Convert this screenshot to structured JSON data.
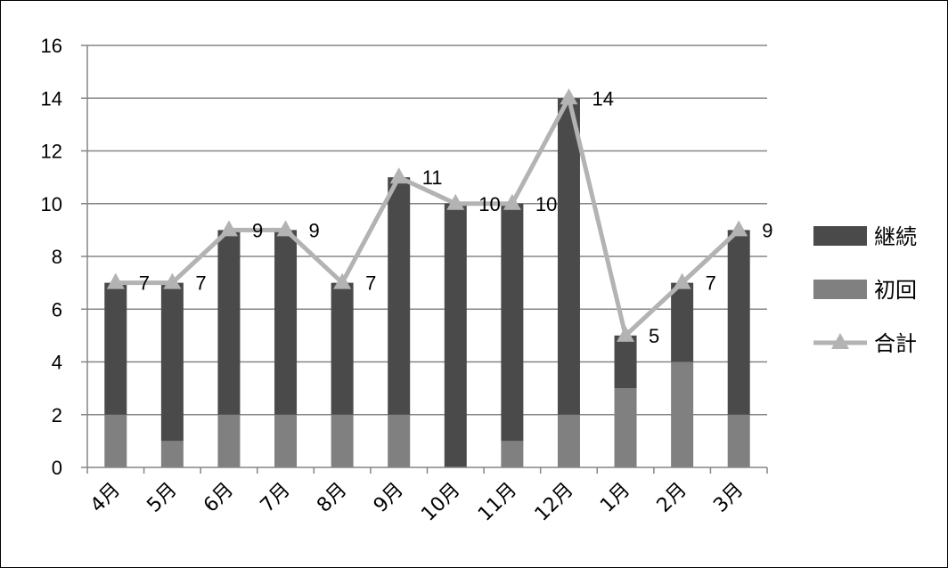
{
  "chart_data": {
    "type": "bar",
    "stacked": true,
    "title": "",
    "xlabel": "",
    "ylabel": "",
    "ylim": [
      0,
      16
    ],
    "yticks": [
      0,
      2,
      4,
      6,
      8,
      10,
      12,
      14,
      16
    ],
    "grid": true,
    "legend_position": "right",
    "categories": [
      "4月",
      "5月",
      "6月",
      "7月",
      "8月",
      "9月",
      "10月",
      "11月",
      "12月",
      "1月",
      "2月",
      "3月"
    ],
    "series": [
      {
        "name": "初回",
        "kind": "bar",
        "color": "#808080",
        "values": [
          2,
          1,
          2,
          2,
          2,
          2,
          0,
          1,
          2,
          3,
          4,
          2
        ]
      },
      {
        "name": "継続",
        "kind": "bar",
        "color": "#4a4a4a",
        "values": [
          5,
          6,
          7,
          7,
          5,
          9,
          10,
          9,
          12,
          2,
          3,
          7
        ]
      },
      {
        "name": "合計",
        "kind": "line",
        "color": "#b3b3b3",
        "marker": "triangle",
        "values": [
          7,
          7,
          9,
          9,
          7,
          11,
          10,
          10,
          14,
          5,
          7,
          9
        ]
      }
    ],
    "legend": [
      "継続",
      "初回",
      "合計"
    ],
    "data_labels": [
      "7",
      "7",
      "9",
      "9",
      "7",
      "11",
      "10",
      "10",
      "14",
      "5",
      "7",
      "9"
    ]
  }
}
